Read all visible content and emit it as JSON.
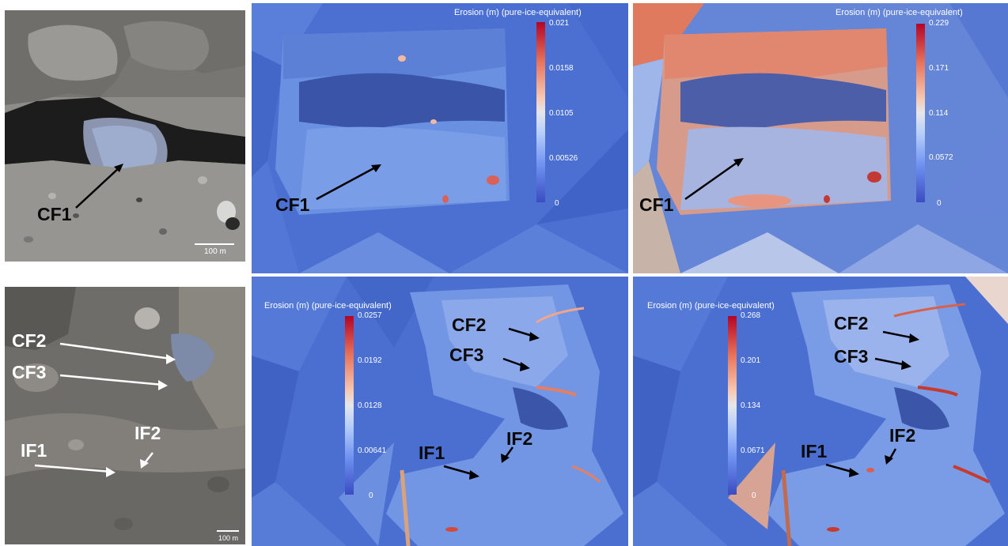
{
  "photo_top": {
    "label_cf1": "CF1",
    "scale_text": "100 m"
  },
  "photo_bottom": {
    "label_cf2": "CF2",
    "label_cf3": "CF3",
    "label_if1": "IF1",
    "label_if2": "IF2",
    "scale_text": "100 m"
  },
  "map_top_mid": {
    "title": "Erosion (m)  (pure-ice-equivalent)",
    "ticks": [
      "0.021",
      "0.0158",
      "0.0105",
      "0.00526",
      "0"
    ],
    "label_cf1": "CF1"
  },
  "map_top_right": {
    "title": "Erosion (m)  (pure-ice-equivalent)",
    "ticks": [
      "0.229",
      "0.171",
      "0.114",
      "0.0572",
      "0"
    ],
    "label_cf1": "CF1"
  },
  "map_bot_mid": {
    "title": "Erosion (m)  (pure-ice-equivalent)",
    "ticks": [
      "0.0257",
      "0.0192",
      "0.0128",
      "0.00641",
      "0"
    ],
    "label_cf2": "CF2",
    "label_cf3": "CF3",
    "label_if1": "IF1",
    "label_if2": "IF2"
  },
  "map_bot_right": {
    "title": "Erosion (m)  (pure-ice-equivalent)",
    "ticks": [
      "0.268",
      "0.201",
      "0.134",
      "0.0671",
      "0"
    ],
    "label_cf2": "CF2",
    "label_cf3": "CF3",
    "label_if1": "IF1",
    "label_if2": "IF2"
  },
  "colors": {
    "map_background": "#4a6fd0",
    "colormap_high": "#b40426",
    "colormap_mid": "#dddddd",
    "colormap_low": "#3b4cc0"
  }
}
